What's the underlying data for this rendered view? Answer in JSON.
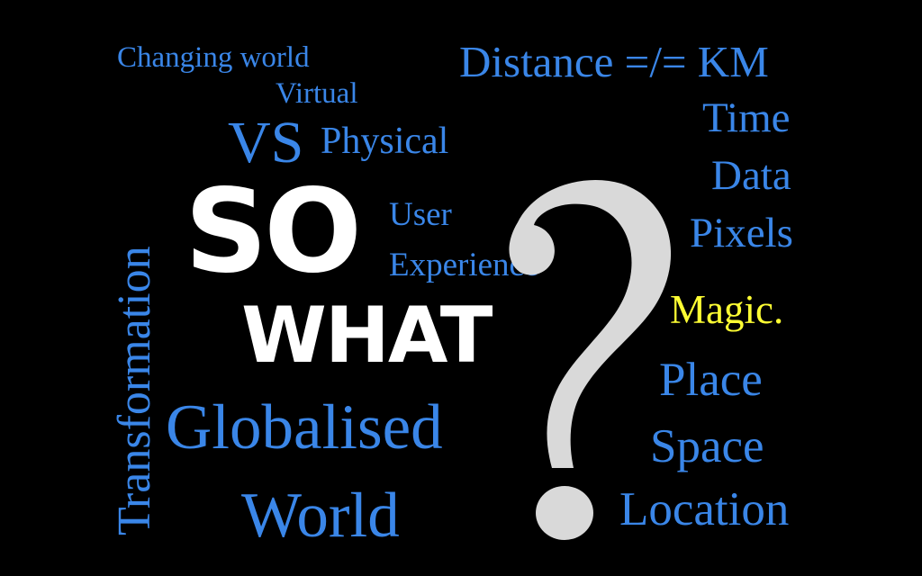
{
  "background_color": "#000000",
  "accent_color": "#3a86e8",
  "highlight_color": "#ffff33",
  "words": {
    "changing_world": "Changing world",
    "virtual": "Virtual",
    "vs": "VS",
    "physical": "Physical",
    "distance": "Distance =/= KM",
    "time": "Time",
    "data": "Data",
    "pixels": "Pixels",
    "magic": "Magic.",
    "place": "Place",
    "space": "Space",
    "location": "Location",
    "user": "User",
    "experience": "Experience",
    "globalised": "Globalised",
    "world": "World",
    "transformation": "Transformation",
    "so": "SO",
    "what": "WHAT"
  },
  "icons": {
    "question_mark": "question-mark-icon"
  }
}
